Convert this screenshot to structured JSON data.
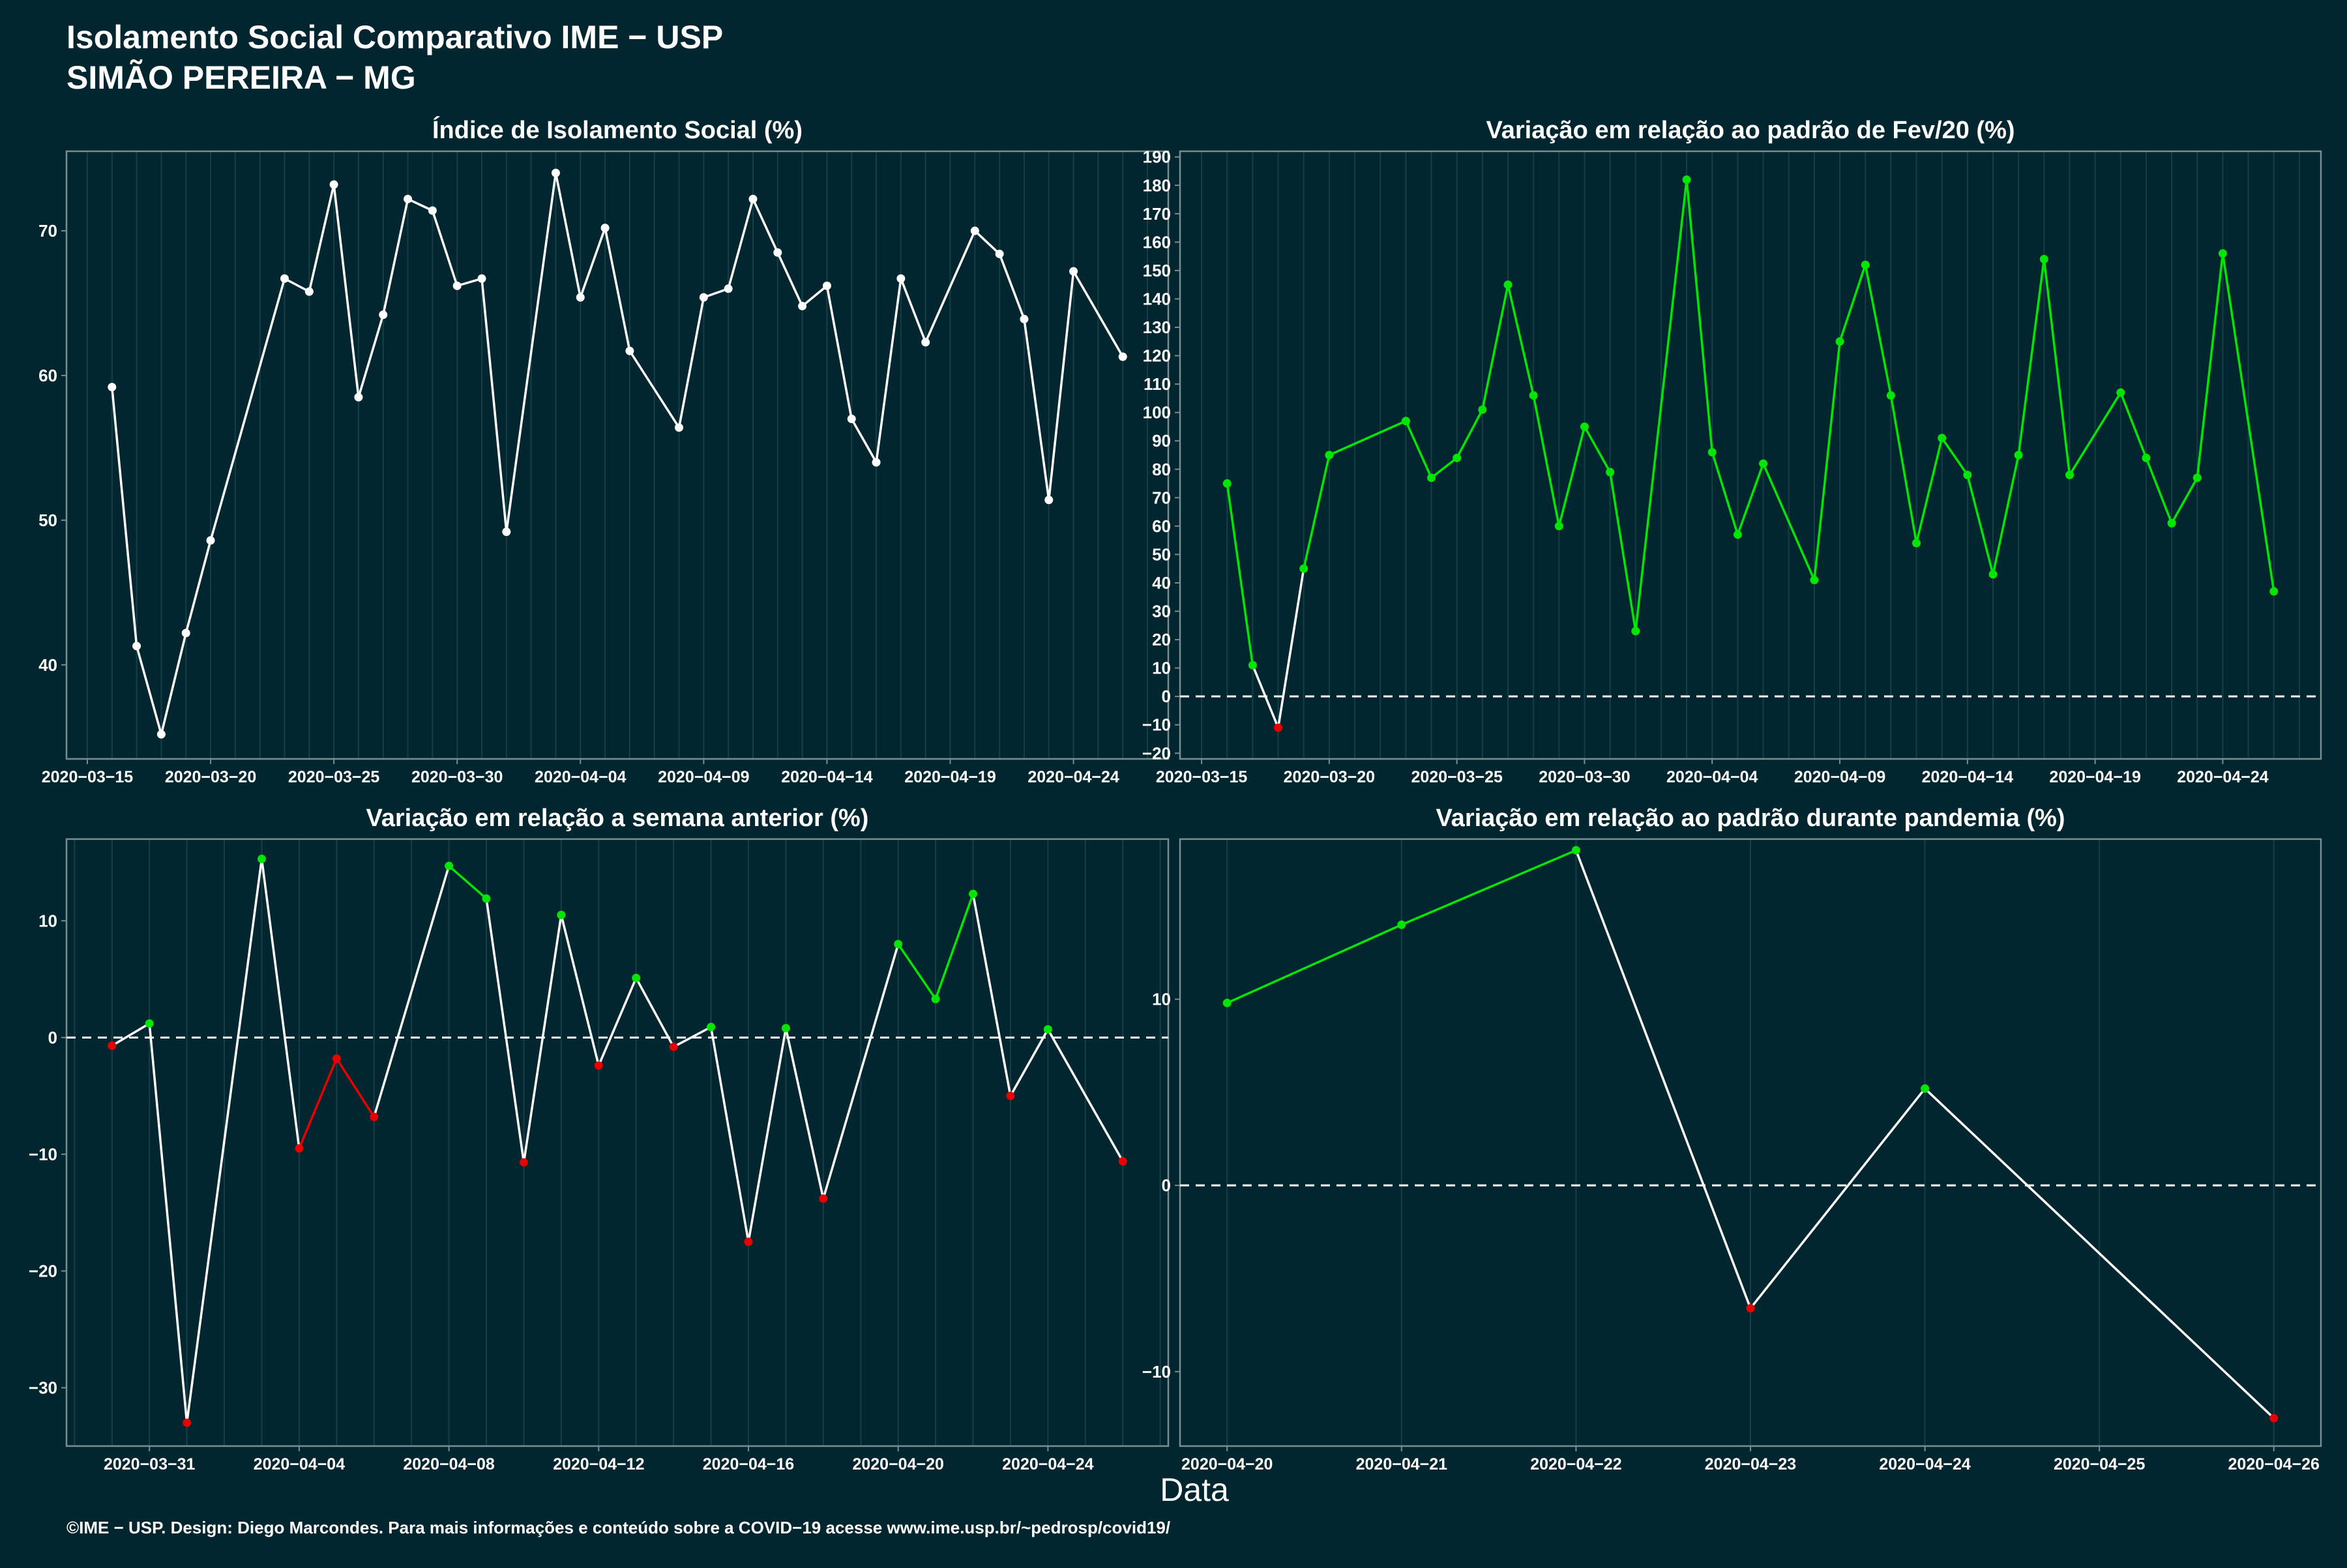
{
  "header": {
    "title_line1": "Isolamento Social Comparativo IME − USP",
    "title_line2": "SIMÃO PEREIRA − MG"
  },
  "xlabel": "Data",
  "footer": "©IME − USP. Design: Diego Marcondes. Para mais informações e conteúdo sobre a COVID−19 acesse www.ime.usp.br/~pedrosp/covid19/",
  "colors": {
    "background": "#02262f",
    "gridline": "#163e46",
    "axis": "#7a8d91",
    "line_white": "#ffffff",
    "positive": "#00e600",
    "negative": "#e60000"
  },
  "chart_data": [
    {
      "type": "line",
      "title": "Índice de Isolamento Social (%)",
      "ylim": [
        33.5,
        75.5
      ],
      "yticks": [
        40,
        50,
        60,
        70
      ],
      "xticks": [
        "2020-03-15",
        "2020-03-20",
        "2020-03-25",
        "2020-03-30",
        "2020-04-04",
        "2020-04-09",
        "2020-04-14",
        "2020-04-19",
        "2020-04-24"
      ],
      "points": [
        {
          "x": "2020-03-16",
          "y": 59.2
        },
        {
          "x": "2020-03-17",
          "y": 41.3
        },
        {
          "x": "2020-03-18",
          "y": 35.2
        },
        {
          "x": "2020-03-19",
          "y": 42.2
        },
        {
          "x": "2020-03-20",
          "y": 48.6
        },
        {
          "x": "2020-03-23",
          "y": 66.7
        },
        {
          "x": "2020-03-24",
          "y": 65.8
        },
        {
          "x": "2020-03-25",
          "y": 73.2
        },
        {
          "x": "2020-03-26",
          "y": 58.5
        },
        {
          "x": "2020-03-27",
          "y": 64.2
        },
        {
          "x": "2020-03-28",
          "y": 72.2
        },
        {
          "x": "2020-03-29",
          "y": 71.4
        },
        {
          "x": "2020-03-30",
          "y": 66.2
        },
        {
          "x": "2020-03-31",
          "y": 66.7
        },
        {
          "x": "2020-04-01",
          "y": 49.2
        },
        {
          "x": "2020-04-03",
          "y": 74.0
        },
        {
          "x": "2020-04-04",
          "y": 65.4
        },
        {
          "x": "2020-04-05",
          "y": 70.2
        },
        {
          "x": "2020-04-06",
          "y": 61.7
        },
        {
          "x": "2020-04-08",
          "y": 56.4
        },
        {
          "x": "2020-04-09",
          "y": 65.4
        },
        {
          "x": "2020-04-10",
          "y": 66.0
        },
        {
          "x": "2020-04-11",
          "y": 72.2
        },
        {
          "x": "2020-04-12",
          "y": 68.5
        },
        {
          "x": "2020-04-13",
          "y": 64.8
        },
        {
          "x": "2020-04-14",
          "y": 66.2
        },
        {
          "x": "2020-04-15",
          "y": 57.0
        },
        {
          "x": "2020-04-16",
          "y": 54.0
        },
        {
          "x": "2020-04-17",
          "y": 66.7
        },
        {
          "x": "2020-04-18",
          "y": 62.3
        },
        {
          "x": "2020-04-20",
          "y": 70.0
        },
        {
          "x": "2020-04-21",
          "y": 68.4
        },
        {
          "x": "2020-04-22",
          "y": 63.9
        },
        {
          "x": "2020-04-23",
          "y": 51.4
        },
        {
          "x": "2020-04-24",
          "y": 67.2
        },
        {
          "x": "2020-04-26",
          "y": 61.3
        }
      ],
      "zero_line": false,
      "color_mode": "white"
    },
    {
      "type": "line",
      "title": "Variação em relação ao padrão de Fev/20 (%)",
      "ylim": [
        -22,
        192
      ],
      "yticks": [
        -20,
        -10,
        0,
        10,
        20,
        30,
        40,
        50,
        60,
        70,
        80,
        90,
        100,
        110,
        120,
        130,
        140,
        150,
        160,
        170,
        180,
        190
      ],
      "xticks": [
        "2020-03-15",
        "2020-03-20",
        "2020-03-25",
        "2020-03-30",
        "2020-04-04",
        "2020-04-09",
        "2020-04-14",
        "2020-04-19",
        "2020-04-24"
      ],
      "points": [
        {
          "x": "2020-03-16",
          "y": 75
        },
        {
          "x": "2020-03-17",
          "y": 11
        },
        {
          "x": "2020-03-18",
          "y": -11
        },
        {
          "x": "2020-03-19",
          "y": 45
        },
        {
          "x": "2020-03-20",
          "y": 85
        },
        {
          "x": "2020-03-23",
          "y": 97
        },
        {
          "x": "2020-03-24",
          "y": 77
        },
        {
          "x": "2020-03-25",
          "y": 84
        },
        {
          "x": "2020-03-26",
          "y": 101
        },
        {
          "x": "2020-03-27",
          "y": 145
        },
        {
          "x": "2020-03-28",
          "y": 106
        },
        {
          "x": "2020-03-29",
          "y": 60
        },
        {
          "x": "2020-03-30",
          "y": 95
        },
        {
          "x": "2020-03-31",
          "y": 79
        },
        {
          "x": "2020-04-01",
          "y": 23
        },
        {
          "x": "2020-04-03",
          "y": 182
        },
        {
          "x": "2020-04-04",
          "y": 86
        },
        {
          "x": "2020-04-05",
          "y": 57
        },
        {
          "x": "2020-04-06",
          "y": 82
        },
        {
          "x": "2020-04-08",
          "y": 41
        },
        {
          "x": "2020-04-09",
          "y": 125
        },
        {
          "x": "2020-04-10",
          "y": 152
        },
        {
          "x": "2020-04-11",
          "y": 106
        },
        {
          "x": "2020-04-12",
          "y": 54
        },
        {
          "x": "2020-04-13",
          "y": 91
        },
        {
          "x": "2020-04-14",
          "y": 78
        },
        {
          "x": "2020-04-15",
          "y": 43
        },
        {
          "x": "2020-04-16",
          "y": 85
        },
        {
          "x": "2020-04-17",
          "y": 154
        },
        {
          "x": "2020-04-18",
          "y": 78
        },
        {
          "x": "2020-04-20",
          "y": 107
        },
        {
          "x": "2020-04-21",
          "y": 84
        },
        {
          "x": "2020-04-22",
          "y": 61
        },
        {
          "x": "2020-04-23",
          "y": 77
        },
        {
          "x": "2020-04-24",
          "y": 156
        },
        {
          "x": "2020-04-26",
          "y": 37
        }
      ],
      "zero_line": true,
      "color_mode": "sign"
    },
    {
      "type": "line",
      "title": "Variação em relação a semana anterior (%)",
      "ylim": [
        -35,
        17
      ],
      "yticks": [
        -30,
        -20,
        -10,
        0,
        10
      ],
      "xticks": [
        "2020-03-31",
        "2020-04-04",
        "2020-04-08",
        "2020-04-12",
        "2020-04-16",
        "2020-04-20",
        "2020-04-24"
      ],
      "points": [
        {
          "x": "2020-03-30",
          "y": -0.7
        },
        {
          "x": "2020-03-31",
          "y": 1.2
        },
        {
          "x": "2020-04-01",
          "y": -33.0
        },
        {
          "x": "2020-04-03",
          "y": 15.3
        },
        {
          "x": "2020-04-04",
          "y": -9.5
        },
        {
          "x": "2020-04-05",
          "y": -1.8
        },
        {
          "x": "2020-04-06",
          "y": -6.8
        },
        {
          "x": "2020-04-08",
          "y": 14.7
        },
        {
          "x": "2020-04-09",
          "y": 11.9
        },
        {
          "x": "2020-04-10",
          "y": -10.7
        },
        {
          "x": "2020-04-11",
          "y": 10.5
        },
        {
          "x": "2020-04-12",
          "y": -2.4
        },
        {
          "x": "2020-04-13",
          "y": 5.1
        },
        {
          "x": "2020-04-14",
          "y": -0.8
        },
        {
          "x": "2020-04-15",
          "y": 0.9
        },
        {
          "x": "2020-04-16",
          "y": -17.5
        },
        {
          "x": "2020-04-17",
          "y": 0.8
        },
        {
          "x": "2020-04-18",
          "y": -13.8
        },
        {
          "x": "2020-04-20",
          "y": 8.0
        },
        {
          "x": "2020-04-21",
          "y": 3.3
        },
        {
          "x": "2020-04-22",
          "y": 12.3
        },
        {
          "x": "2020-04-23",
          "y": -5.0
        },
        {
          "x": "2020-04-24",
          "y": 0.7
        },
        {
          "x": "2020-04-26",
          "y": -10.6
        }
      ],
      "zero_line": true,
      "color_mode": "sign"
    },
    {
      "type": "line",
      "title": "Variação em relação ao padrão durante pandemia (%)",
      "ylim": [
        -14,
        18.6
      ],
      "yticks": [
        -10,
        0,
        10
      ],
      "xticks": [
        "2020-04-20",
        "2020-04-21",
        "2020-04-22",
        "2020-04-23",
        "2020-04-24",
        "2020-04-25",
        "2020-04-26"
      ],
      "points": [
        {
          "x": "2020-04-20",
          "y": 9.8
        },
        {
          "x": "2020-04-21",
          "y": 14.0
        },
        {
          "x": "2020-04-22",
          "y": 18.0
        },
        {
          "x": "2020-04-23",
          "y": -6.6
        },
        {
          "x": "2020-04-24",
          "y": 5.2
        },
        {
          "x": "2020-04-26",
          "y": -12.5
        }
      ],
      "zero_line": true,
      "color_mode": "sign"
    }
  ]
}
